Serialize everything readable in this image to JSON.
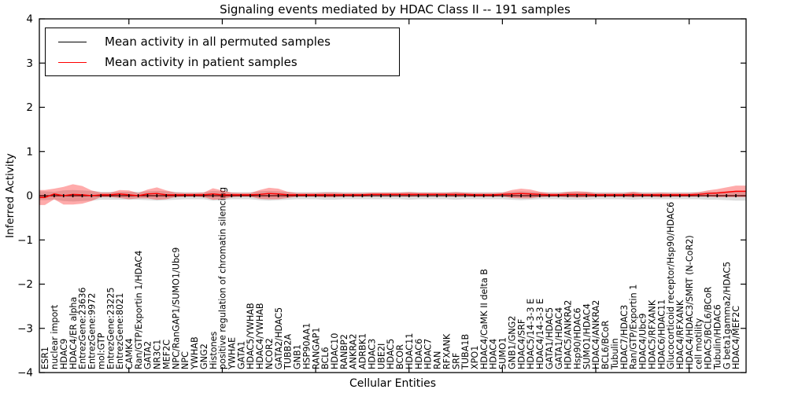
{
  "title": "Signaling events mediated by HDAC Class II -- 191 samples",
  "legend": {
    "items": [
      {
        "label": "Mean activity in all permuted samples",
        "color": "#000000"
      },
      {
        "label": "Mean activity in patient samples",
        "color": "#ff0000"
      }
    ]
  },
  "axes": {
    "x_label": "Cellular Entities",
    "y_label": "Inferred Activity",
    "y_ticks": [
      4,
      3,
      2,
      1,
      0,
      -1,
      -2,
      -3,
      -4
    ]
  },
  "colors": {
    "permuted_line": "#000000",
    "permuted_band": "rgba(130,130,130,0.28)",
    "patient_line": "#ff0000",
    "patient_band": "rgba(255,0,0,0.33)"
  },
  "chart_data": {
    "type": "line",
    "title": "Signaling events mediated by HDAC Class II -- 191 samples",
    "xlabel": "Cellular Entities",
    "ylabel": "Inferred Activity",
    "ylim": [
      -4,
      4
    ],
    "grid": false,
    "legend_position": "upper left",
    "categories": [
      "ESR1",
      "nuclear import",
      "HDAC9",
      "HDAC4/ER alpha",
      "EntrezGene:23636",
      "EntrezGene:9972",
      "mol:GTP",
      "EntrezGene:23225",
      "EntrezGene:8021",
      "CAMK4",
      "Ran/GTP/Exportin 1/HDAC4",
      "GATA2",
      "NR3C1",
      "MEF2C",
      "NPC/RanGAP1/SUMO1/Ubc9",
      "NPC",
      "YWHAB",
      "GNG2",
      "Histones",
      "positive regulation of chromatin silencing",
      "YWHAE",
      "GATA1",
      "HDAC5/YWHAB",
      "HDAC4/YWHAB",
      "NCOR2",
      "GATA2/HDAC5",
      "TUBB2A",
      "GNB1",
      "HSP90AA1",
      "RANGAP1",
      "BCL6",
      "HDAC10",
      "RANBP2",
      "ANKRA2",
      "ADRBK1",
      "HDAC3",
      "UBE2I",
      "HDAC5",
      "BCOR",
      "HDAC11",
      "HDAC6",
      "HDAC7",
      "RAN",
      "RFXANK",
      "SRF",
      "TUBA1B",
      "XPO1",
      "HDAC4/CaMK II delta B",
      "HDAC4",
      "SUMO1",
      "GNB1/GNG2",
      "HDAC4/SRF",
      "HDAC5/14-3-3 E",
      "HDAC4/14-3-3 E",
      "GATA1/HDAC5",
      "GATA1/HDAC4",
      "HDAC5/ANKRA2",
      "Hsp90/HDAC6",
      "SUMO1/HDAC4",
      "HDAC4/ANKRA2",
      "BCL6/BCoR",
      "Tubulin",
      "HDAC7/HDAC3",
      "Ran/GTP/Exportin 1",
      "HDAC4/Ubc9",
      "HDAC5/RFXANK",
      "HDAC6/HDAC11",
      "Glucocorticoid receptor/Hsp90/HDAC6",
      "HDAC4/RFXANK",
      "HDAC4/HDAC3/SMRT (N-CoR2)",
      "cell motility",
      "HDAC5/BCL6/BCoR",
      "Tubulin/HDAC6",
      "G beta1gamma2/HDAC5",
      "HDAC4/MEF2C"
    ],
    "series": [
      {
        "name": "Mean activity in all permuted samples",
        "color": "#000000",
        "values": [
          0,
          0,
          0,
          0,
          0,
          0,
          0,
          0,
          0,
          0,
          0,
          0,
          0,
          0,
          0,
          0,
          0,
          0,
          0,
          0,
          0,
          0,
          0,
          0,
          0,
          0,
          0,
          0,
          0,
          0,
          0,
          0,
          0,
          0,
          0,
          0,
          0,
          0,
          0,
          0,
          0,
          0,
          0,
          0,
          0,
          0,
          0,
          0,
          0,
          0,
          0,
          0,
          0,
          0,
          0,
          0,
          0,
          0,
          0,
          0,
          0,
          0,
          0,
          0,
          0,
          0,
          0,
          0,
          0,
          0,
          0,
          0,
          0,
          0,
          0
        ],
        "std": [
          0.1,
          0.09,
          0.12,
          0.13,
          0.12,
          0.11,
          0.09,
          0.09,
          0.09,
          0.09,
          0.09,
          0.1,
          0.11,
          0.1,
          0.09,
          0.08,
          0.08,
          0.08,
          0.11,
          0.1,
          0.08,
          0.08,
          0.08,
          0.1,
          0.11,
          0.1,
          0.09,
          0.08,
          0.08,
          0.08,
          0.09,
          0.09,
          0.08,
          0.08,
          0.08,
          0.08,
          0.08,
          0.08,
          0.08,
          0.09,
          0.08,
          0.08,
          0.08,
          0.08,
          0.09,
          0.08,
          0.08,
          0.08,
          0.08,
          0.08,
          0.09,
          0.1,
          0.09,
          0.08,
          0.08,
          0.08,
          0.09,
          0.09,
          0.09,
          0.08,
          0.08,
          0.08,
          0.08,
          0.09,
          0.08,
          0.08,
          0.08,
          0.08,
          0.08,
          0.08,
          0.08,
          0.09,
          0.09,
          0.1,
          0.11
        ]
      },
      {
        "name": "Mean activity in patient samples",
        "color": "#ff0000",
        "values": [
          -0.04,
          0.04,
          0.0,
          0.03,
          0.02,
          0.0,
          0.02,
          0.02,
          0.04,
          0.02,
          0.0,
          0.04,
          0.05,
          0.02,
          0.02,
          0.02,
          0.02,
          0.02,
          0.04,
          0.02,
          0.02,
          0.02,
          0.02,
          0.03,
          0.05,
          0.04,
          0.02,
          0.02,
          0.02,
          0.02,
          0.02,
          0.02,
          0.02,
          0.02,
          0.02,
          0.03,
          0.03,
          0.03,
          0.03,
          0.03,
          0.03,
          0.03,
          0.03,
          0.03,
          0.03,
          0.03,
          0.02,
          0.02,
          0.02,
          0.03,
          0.04,
          0.05,
          0.04,
          0.03,
          0.02,
          0.02,
          0.03,
          0.03,
          0.03,
          0.02,
          0.02,
          0.02,
          0.02,
          0.03,
          0.02,
          0.02,
          0.02,
          0.02,
          0.02,
          0.02,
          0.03,
          0.05,
          0.06,
          0.08,
          0.1
        ],
        "std": [
          0.17,
          0.12,
          0.2,
          0.23,
          0.2,
          0.12,
          0.05,
          0.05,
          0.09,
          0.1,
          0.06,
          0.1,
          0.14,
          0.1,
          0.05,
          0.04,
          0.04,
          0.05,
          0.13,
          0.1,
          0.05,
          0.04,
          0.04,
          0.1,
          0.13,
          0.12,
          0.07,
          0.04,
          0.04,
          0.04,
          0.05,
          0.05,
          0.04,
          0.04,
          0.04,
          0.04,
          0.04,
          0.04,
          0.04,
          0.05,
          0.04,
          0.04,
          0.04,
          0.04,
          0.05,
          0.04,
          0.04,
          0.04,
          0.04,
          0.04,
          0.09,
          0.11,
          0.1,
          0.06,
          0.04,
          0.04,
          0.06,
          0.07,
          0.06,
          0.04,
          0.04,
          0.04,
          0.04,
          0.06,
          0.04,
          0.04,
          0.05,
          0.04,
          0.04,
          0.04,
          0.05,
          0.07,
          0.09,
          0.11,
          0.13
        ]
      }
    ]
  }
}
